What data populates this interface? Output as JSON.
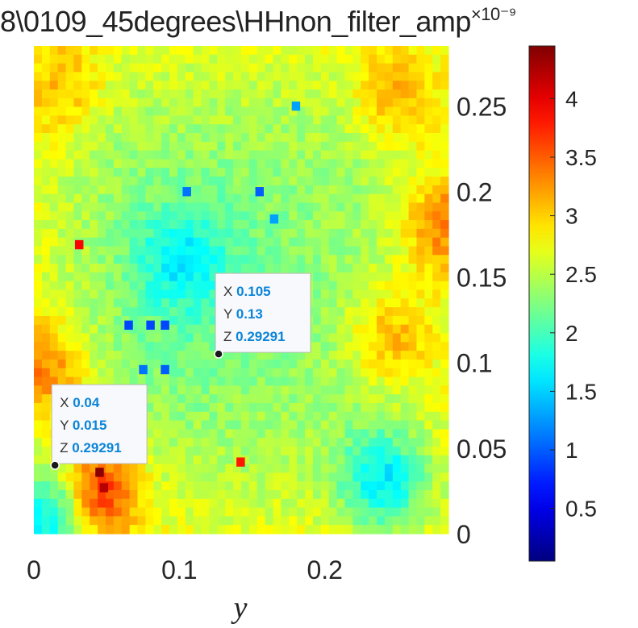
{
  "title": "8\\0109_45degrees\\HHnon_filter_amp",
  "title_exponent": "×10⁻⁹",
  "chart_data": {
    "type": "heatmap",
    "title": "8\\0109_45degrees\\HHnon_filter_amp",
    "xlabel": "y",
    "ylabel": "",
    "x_ticks": [
      "0",
      "0.1",
      "0.2"
    ],
    "x_tick_values": [
      0,
      0.1,
      0.2
    ],
    "y_ticks": [
      "0",
      "0.05",
      "0.1",
      "0.15",
      "0.2",
      "0.25"
    ],
    "y_tick_values": [
      0,
      0.05,
      0.1,
      0.15,
      0.2,
      0.25
    ],
    "xlim": [
      0,
      0.285
    ],
    "ylim": [
      0,
      0.285
    ],
    "grid_cells": [
      52,
      56
    ],
    "colormap": "jet",
    "colorbar": {
      "range": [
        0.05,
        4.45
      ],
      "ticks": [
        "0.5",
        "1",
        "1.5",
        "2",
        "2.5",
        "3",
        "3.5",
        "4"
      ],
      "tick_values": [
        0.5,
        1,
        1.5,
        2,
        2.5,
        3,
        3.5,
        4
      ],
      "multiplier": "×10⁻⁹"
    },
    "regions": [
      {
        "x": 0.01,
        "y": 0.095,
        "value": 3.1
      },
      {
        "x": 0.02,
        "y": 0.26,
        "value": 2.9
      },
      {
        "x": 0.045,
        "y": 0.025,
        "value": 3.6
      },
      {
        "x": 0.245,
        "y": 0.115,
        "value": 3.0
      },
      {
        "x": 0.25,
        "y": 0.255,
        "value": 3.0
      },
      {
        "x": 0.28,
        "y": 0.18,
        "value": 3.1
      },
      {
        "x": 0.1,
        "y": 0.16,
        "value": 1.9
      },
      {
        "x": 0.24,
        "y": 0.03,
        "value": 1.5
      },
      {
        "x": 0.01,
        "y": 0.01,
        "value": 1.3
      }
    ],
    "hotspots": [
      {
        "x": 0.045,
        "y": 0.036,
        "value": 4.4
      },
      {
        "x": 0.048,
        "y": 0.027,
        "value": 4.2
      },
      {
        "x": 0.031,
        "y": 0.169,
        "value": 3.9
      },
      {
        "x": 0.142,
        "y": 0.042,
        "value": 3.8
      }
    ],
    "coldspots": [
      {
        "x": 0.065,
        "y": 0.122,
        "value": 0.9
      },
      {
        "x": 0.08,
        "y": 0.122,
        "value": 0.9
      },
      {
        "x": 0.09,
        "y": 0.122,
        "value": 0.9
      },
      {
        "x": 0.09,
        "y": 0.096,
        "value": 1.0
      },
      {
        "x": 0.075,
        "y": 0.096,
        "value": 1.1
      },
      {
        "x": 0.155,
        "y": 0.2,
        "value": 1.0
      },
      {
        "x": 0.105,
        "y": 0.2,
        "value": 1.1
      },
      {
        "x": 0.18,
        "y": 0.25,
        "value": 1.3
      },
      {
        "x": 0.165,
        "y": 0.184,
        "value": 1.3
      }
    ],
    "datatips": [
      {
        "x_label": "X",
        "x": "0.105",
        "y_label": "Y",
        "y": "0.13",
        "z_label": "Z",
        "z": "0.29291",
        "point_x": 0.127,
        "point_y": 0.105
      },
      {
        "x_label": "X",
        "x": "0.04",
        "y_label": "Y",
        "y": "0.015",
        "z_label": "Z",
        "z": "0.29291",
        "point_x": 0.0145,
        "point_y": 0.04
      }
    ]
  }
}
